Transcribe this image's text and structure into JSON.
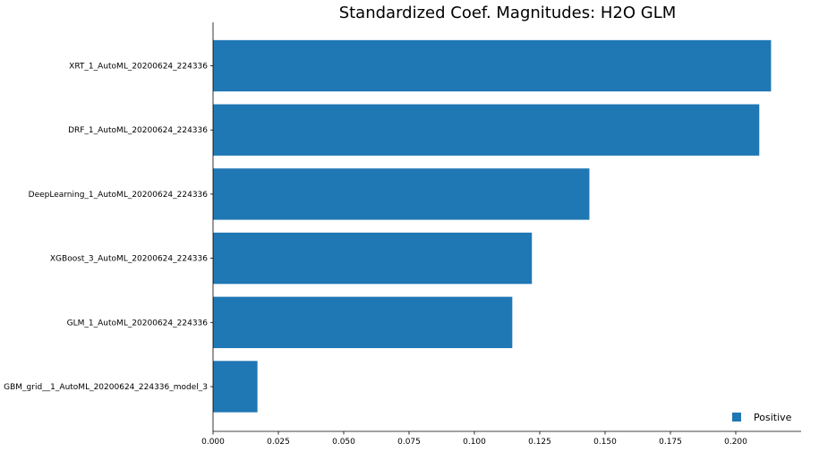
{
  "chart_data": {
    "type": "bar",
    "orientation": "horizontal",
    "title": "Standardized Coef. Magnitudes: H2O GLM",
    "xlabel": "",
    "ylabel": "",
    "categories": [
      "XRT_1_AutoML_20200624_224336",
      "DRF_1_AutoML_20200624_224336",
      "DeepLearning_1_AutoML_20200624_224336",
      "XGBoost_3_AutoML_20200624_224336",
      "GLM_1_AutoML_20200624_224336",
      "GBM_grid__1_AutoML_20200624_224336_model_3"
    ],
    "series": [
      {
        "name": "Positive",
        "color": "#1f77b4",
        "values": [
          0.2135,
          0.209,
          0.144,
          0.122,
          0.1145,
          0.017
        ]
      }
    ],
    "xlim": [
      0,
      0.225
    ],
    "xticks": [
      "0.000",
      "0.025",
      "0.050",
      "0.075",
      "0.100",
      "0.125",
      "0.150",
      "0.175",
      "0.200"
    ],
    "grid": false,
    "legend_position": "bottom-right"
  }
}
